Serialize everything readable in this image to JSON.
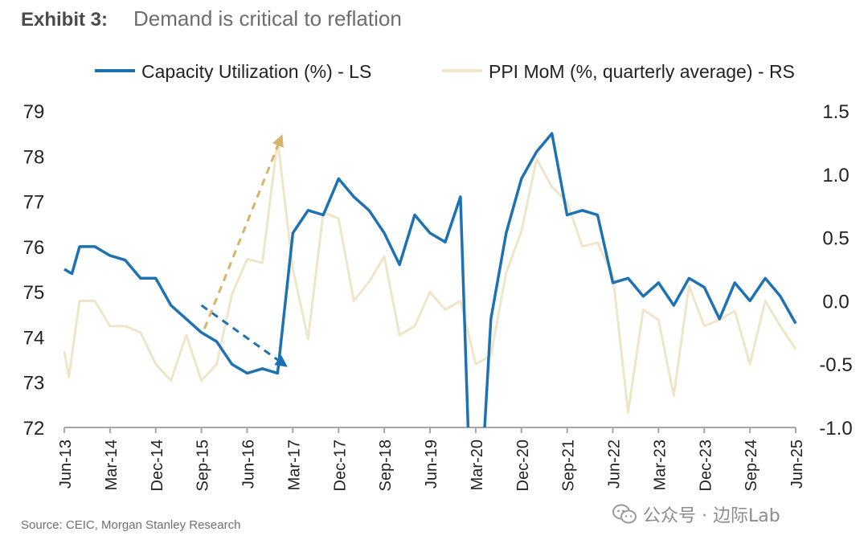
{
  "header": {
    "exhibit": "Exhibit 3:",
    "title": "Demand is critical to reflation"
  },
  "source": "Source: CEIC, Morgan Stanley Research",
  "watermark": "公众号 · 边际Lab",
  "colors": {
    "capacity": "#1f72b1",
    "ppi": "#efe5c8",
    "arrow_ppi": "#d7b46a",
    "axis": "#a6a6a6",
    "text": "#222222"
  },
  "chart_data": {
    "type": "line",
    "legend": [
      "Capacity Utilization (%) - LS",
      "PPI MoM (%, quarterly average) - RS"
    ],
    "legend_position": "top",
    "grid": false,
    "x_tick_labels": [
      "Jun-13",
      "Mar-14",
      "Dec-14",
      "Sep-15",
      "Jun-16",
      "Mar-17",
      "Dec-17",
      "Sep-18",
      "Jun-19",
      "Mar-20",
      "Dec-20",
      "Sep-21",
      "Jun-22",
      "Mar-23",
      "Dec-23",
      "Sep-24",
      "Jun-25"
    ],
    "left_axis": {
      "ylim": [
        72,
        79
      ],
      "ticks": [
        "72",
        "73",
        "74",
        "75",
        "76",
        "77",
        "78",
        "79"
      ]
    },
    "right_axis": {
      "ylim": [
        -1.0,
        1.5
      ],
      "ticks": [
        "-1.0",
        "-0.5",
        "0.0",
        "0.5",
        "1.0",
        "1.5"
      ]
    },
    "quarters": [
      "Jun-13",
      "Sep-13",
      "Dec-13",
      "Mar-14",
      "Jun-14",
      "Sep-14",
      "Dec-14",
      "Mar-15",
      "Jun-15",
      "Sep-15",
      "Dec-15",
      "Mar-16",
      "Jun-16",
      "Sep-16",
      "Dec-16",
      "Mar-17",
      "Jun-17",
      "Sep-17",
      "Dec-17",
      "Mar-18",
      "Jun-18",
      "Sep-18",
      "Dec-18",
      "Mar-19",
      "Jun-19",
      "Sep-19",
      "Dec-19",
      "Mar-20",
      "Jun-20",
      "Sep-20",
      "Dec-20",
      "Mar-21",
      "Jun-21",
      "Sep-21",
      "Dec-21",
      "Mar-22",
      "Jun-22",
      "Sep-22",
      "Dec-22",
      "Mar-23",
      "Jun-23",
      "Sep-23",
      "Dec-23",
      "Mar-24",
      "Jun-24",
      "Sep-24",
      "Dec-24",
      "Mar-25",
      "Jun-25"
    ],
    "series": [
      {
        "name": "Capacity Utilization (%) - LS",
        "axis": "left",
        "values": [
          [
            0,
            75.5
          ],
          [
            0.5,
            75.4
          ],
          [
            1,
            76.0
          ],
          [
            2,
            76.0
          ],
          [
            3,
            75.8
          ],
          [
            4,
            75.7
          ],
          [
            5,
            75.3
          ],
          [
            6,
            75.3
          ],
          [
            7,
            74.7
          ],
          [
            8,
            74.4
          ],
          [
            9,
            74.1
          ],
          [
            10,
            73.9
          ],
          [
            11,
            73.4
          ],
          [
            12,
            73.2
          ],
          [
            13,
            73.3
          ],
          [
            14,
            73.2
          ],
          [
            15,
            76.3
          ],
          [
            16,
            76.8
          ],
          [
            17,
            76.7
          ],
          [
            18,
            77.5
          ],
          [
            19,
            77.1
          ],
          [
            20,
            76.8
          ],
          [
            21,
            76.3
          ],
          [
            22,
            75.6
          ],
          [
            23,
            76.7
          ],
          [
            24,
            76.3
          ],
          [
            25,
            76.1
          ],
          [
            26,
            77.1
          ],
          [
            26.5,
            72.0
          ],
          [
            27,
            71.0
          ],
          [
            27.5,
            71.5
          ],
          [
            28,
            74.4
          ],
          [
            29,
            76.3
          ],
          [
            30,
            77.5
          ],
          [
            31,
            78.1
          ],
          [
            32,
            78.5
          ],
          [
            33,
            76.7
          ],
          [
            34,
            76.8
          ],
          [
            35,
            76.7
          ],
          [
            36,
            75.2
          ],
          [
            37,
            75.3
          ],
          [
            38,
            74.9
          ],
          [
            39,
            75.2
          ],
          [
            40,
            74.7
          ],
          [
            41,
            75.3
          ],
          [
            42,
            75.1
          ],
          [
            43,
            74.4
          ],
          [
            44,
            75.2
          ],
          [
            45,
            74.8
          ],
          [
            46,
            75.3
          ],
          [
            47,
            74.9
          ],
          [
            48,
            74.3
          ]
        ]
      },
      {
        "name": "PPI MoM (%, quarterly average) - RS",
        "axis": "right",
        "values": [
          [
            0,
            -0.4
          ],
          [
            0.3,
            -0.6
          ],
          [
            1,
            0.0
          ],
          [
            2,
            0.0
          ],
          [
            3,
            -0.2
          ],
          [
            4,
            -0.2
          ],
          [
            5,
            -0.25
          ],
          [
            6,
            -0.5
          ],
          [
            7,
            -0.63
          ],
          [
            8,
            -0.27
          ],
          [
            9,
            -0.63
          ],
          [
            10,
            -0.5
          ],
          [
            11,
            0.05
          ],
          [
            12,
            0.33
          ],
          [
            13,
            0.3
          ],
          [
            14,
            1.27
          ],
          [
            15,
            0.25
          ],
          [
            16,
            -0.3
          ],
          [
            17,
            0.7
          ],
          [
            18,
            0.65
          ],
          [
            19,
            0.0
          ],
          [
            20,
            0.15
          ],
          [
            21,
            0.35
          ],
          [
            22,
            -0.27
          ],
          [
            23,
            -0.2
          ],
          [
            24,
            0.07
          ],
          [
            25,
            -0.07
          ],
          [
            26,
            0.0
          ],
          [
            27,
            -0.5
          ],
          [
            28,
            -0.43
          ],
          [
            29,
            0.22
          ],
          [
            30,
            0.55
          ],
          [
            31,
            1.12
          ],
          [
            32,
            0.9
          ],
          [
            33,
            0.78
          ],
          [
            34,
            0.43
          ],
          [
            35,
            0.46
          ],
          [
            36,
            0.2
          ],
          [
            37,
            -0.88
          ],
          [
            38,
            -0.07
          ],
          [
            39,
            -0.15
          ],
          [
            40,
            -0.75
          ],
          [
            41,
            0.12
          ],
          [
            42,
            -0.2
          ],
          [
            43,
            -0.15
          ],
          [
            44,
            -0.08
          ],
          [
            45,
            -0.5
          ],
          [
            46,
            0.0
          ],
          [
            47,
            -0.2
          ],
          [
            48,
            -0.38
          ]
        ]
      }
    ],
    "annotations": [
      {
        "type": "dashed-arrow",
        "series": "Capacity Utilization (%) - LS",
        "from": [
          9,
          74.7
        ],
        "to": [
          14.4,
          73.4
        ]
      },
      {
        "type": "dashed-arrow",
        "series": "PPI MoM (%, quarterly average) - RS",
        "from": [
          9.2,
          -0.22
        ],
        "to": [
          14.2,
          1.28
        ]
      }
    ]
  }
}
